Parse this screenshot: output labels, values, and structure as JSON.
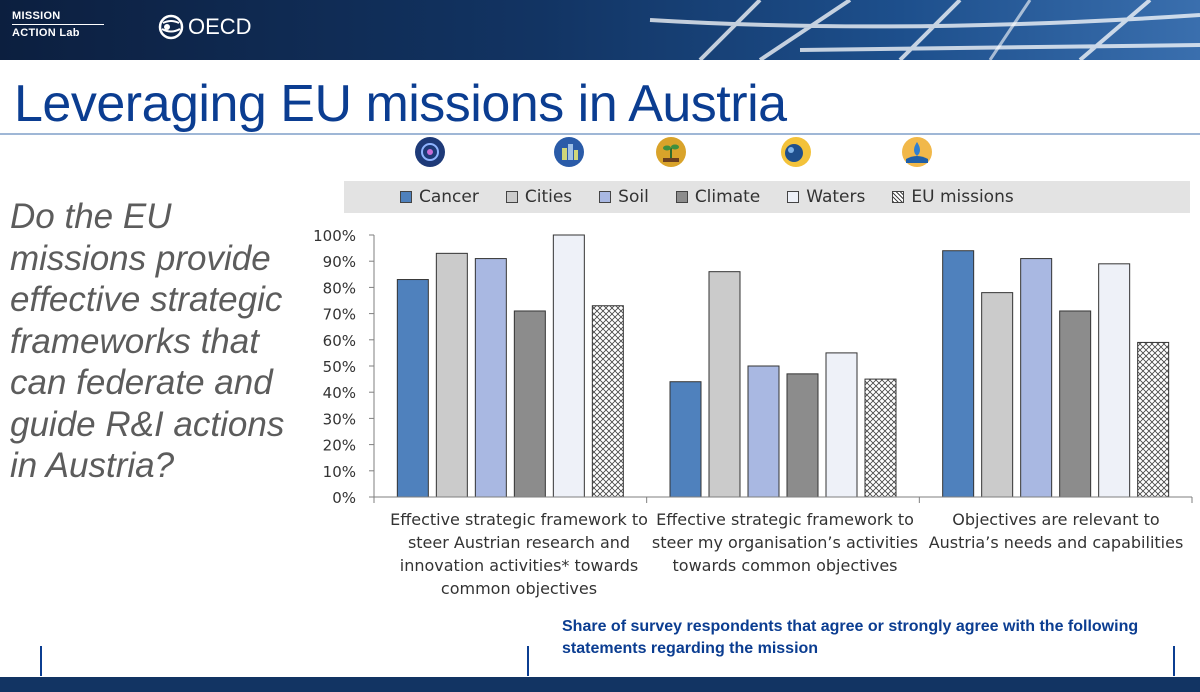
{
  "header": {
    "org_logo_line1": "MISSION",
    "org_logo_line2": "ACTION Lab",
    "partner_logo": "OECD"
  },
  "title": "Leveraging EU missions in Austria",
  "question": "Do the EU missions provide effective strategic frameworks that can federate and guide R&I actions in Austria?",
  "mission_icons": [
    "cancer-mission-icon",
    "cities-mission-icon",
    "soil-mission-icon",
    "climate-mission-icon",
    "waters-mission-icon"
  ],
  "colors": {
    "cancer": "#4f81bd",
    "cities": "#cbcbcb",
    "soil": "#a9b8e2",
    "climate": "#8c8c8c",
    "waters": "#eef1f8",
    "eu_missions": "#ffffff",
    "title": "#0b3d91"
  },
  "chart_data": {
    "type": "bar",
    "title": "",
    "xlabel": "",
    "ylabel": "",
    "ylim": [
      0,
      100
    ],
    "yticks": [
      "0%",
      "10%",
      "20%",
      "30%",
      "40%",
      "50%",
      "60%",
      "70%",
      "80%",
      "90%",
      "100%"
    ],
    "legend_position": "top",
    "categories": [
      "Effective strategic framework to steer Austrian research and innovation activities* towards common objectives",
      "Effective strategic framework to steer my organisation’s activities towards common objectives",
      "Objectives are relevant to Austria’s needs and capabilities"
    ],
    "category_lines": [
      [
        "Effective strategic framework to",
        "steer Austrian research and",
        "innovation activities* towards",
        "common objectives"
      ],
      [
        "Effective strategic framework to",
        "steer my organisation’s activities",
        "towards common objectives"
      ],
      [
        "Objectives are relevant to",
        "Austria’s needs and capabilities"
      ]
    ],
    "series": [
      {
        "name": "Cancer",
        "values": [
          83,
          44,
          94
        ]
      },
      {
        "name": "Cities",
        "values": [
          93,
          86,
          78
        ]
      },
      {
        "name": "Soil",
        "values": [
          91,
          50,
          91
        ]
      },
      {
        "name": "Climate",
        "values": [
          71,
          47,
          71
        ]
      },
      {
        "name": "Waters",
        "values": [
          100,
          55,
          89
        ]
      },
      {
        "name": "EU missions",
        "values": [
          73,
          45,
          59
        ]
      }
    ]
  },
  "footnote": "Share of survey respondents that agree or strongly agree with the following statements regarding the mission"
}
